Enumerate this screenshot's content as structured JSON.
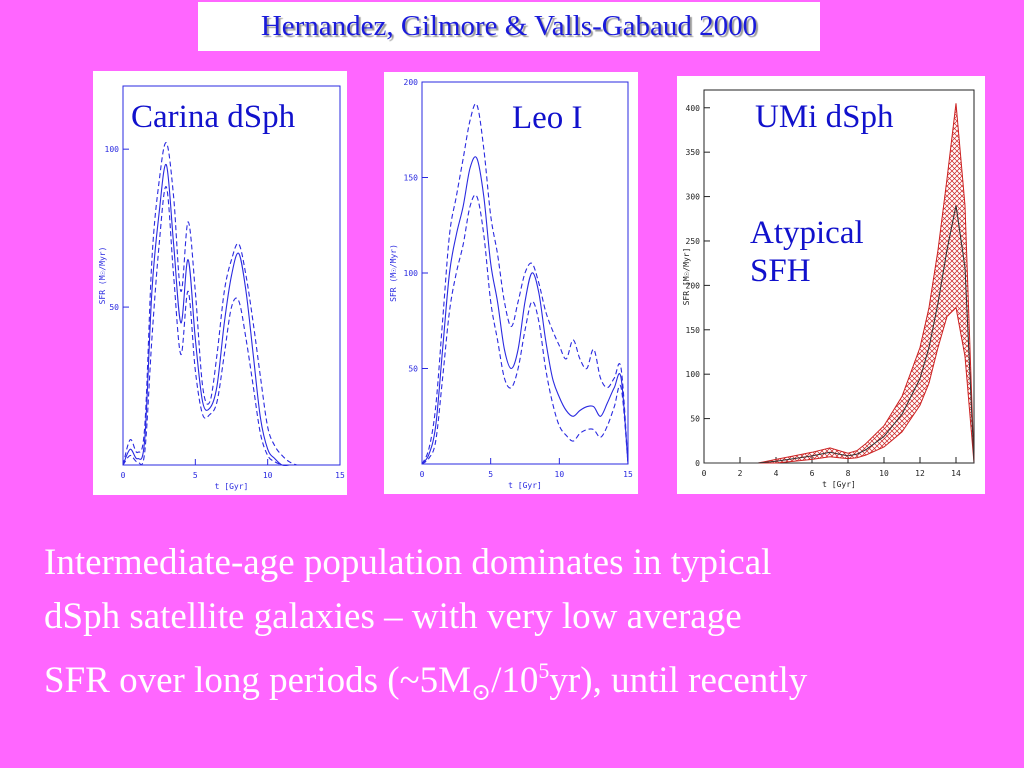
{
  "citation": "Hernandez, Gilmore & Valls-Gabaud 2000",
  "colors": {
    "background": "#ff66ff",
    "panel_line": "#2a2ae0",
    "umi_hatch": "#cc2222",
    "label_text": "#1111cc"
  },
  "chart_data": [
    {
      "type": "line",
      "title": "Carina dSph",
      "xlabel": "t [Gyr]",
      "ylabel": "SFR (M☉/Myr)",
      "xlim": [
        0,
        15
      ],
      "ylim": [
        0,
        120
      ],
      "xticks": [
        0,
        5,
        10,
        15
      ],
      "yticks": [
        50,
        100
      ],
      "series": [
        {
          "style": "solid",
          "x": [
            0,
            0.5,
            1,
            1.5,
            2,
            2.5,
            3,
            3.5,
            4,
            4.5,
            5,
            5.5,
            6,
            6.5,
            7,
            7.5,
            8,
            8.5,
            9,
            9.5,
            10,
            10.5,
            11,
            11.5
          ],
          "values": [
            0,
            5,
            2,
            8,
            55,
            80,
            95,
            70,
            45,
            65,
            40,
            20,
            18,
            25,
            45,
            60,
            67,
            55,
            35,
            15,
            5,
            2,
            0,
            0
          ]
        },
        {
          "style": "dashed",
          "x": [
            0,
            0.5,
            1,
            1.5,
            2,
            2.5,
            3,
            3.5,
            4,
            4.5,
            5,
            5.5,
            6,
            6.5,
            7,
            7.5,
            8,
            8.5,
            9,
            9.5,
            10,
            10.5,
            11,
            11.5,
            12
          ],
          "values": [
            0,
            8,
            4,
            12,
            65,
            90,
            102,
            85,
            55,
            77,
            55,
            25,
            20,
            35,
            55,
            65,
            70,
            60,
            45,
            28,
            12,
            6,
            3,
            1,
            0
          ]
        },
        {
          "style": "dashed",
          "x": [
            0,
            0.5,
            1,
            1.5,
            2,
            2.5,
            3,
            3.5,
            4,
            4.5,
            5,
            5.5,
            6,
            6.5,
            7,
            7.5,
            8,
            8.5,
            9,
            9.5,
            10,
            10.5,
            11
          ],
          "values": [
            0,
            3,
            1,
            4,
            40,
            70,
            88,
            60,
            35,
            55,
            30,
            16,
            16,
            20,
            35,
            50,
            52,
            40,
            25,
            10,
            3,
            1,
            0
          ]
        }
      ]
    },
    {
      "type": "line",
      "title": "Leo I",
      "xlabel": "t [Gyr]",
      "ylabel": "SFR (M☉/Myr)",
      "xlim": [
        0,
        15
      ],
      "ylim": [
        0,
        200
      ],
      "xticks": [
        0,
        5,
        10,
        15
      ],
      "yticks": [
        50,
        100,
        150,
        200
      ],
      "series": [
        {
          "style": "solid",
          "x": [
            0,
            0.5,
            1,
            1.5,
            2,
            2.5,
            3,
            3.5,
            4,
            4.5,
            5,
            5.5,
            6,
            6.5,
            7,
            7.5,
            8,
            8.5,
            9,
            9.5,
            10,
            10.5,
            11,
            11.5,
            12,
            12.5,
            13,
            13.5,
            14,
            14.5,
            15
          ],
          "values": [
            0,
            5,
            20,
            60,
            100,
            120,
            135,
            155,
            160,
            140,
            105,
            85,
            60,
            50,
            60,
            85,
            100,
            90,
            65,
            45,
            35,
            28,
            25,
            28,
            30,
            30,
            25,
            32,
            40,
            45,
            0
          ]
        },
        {
          "style": "dashed",
          "x": [
            0,
            0.5,
            1,
            1.5,
            2,
            2.5,
            3,
            3.5,
            4,
            4.5,
            5,
            5.5,
            6,
            6.5,
            7,
            7.5,
            8,
            8.5,
            9,
            9.5,
            10,
            10.5,
            11,
            11.5,
            12,
            12.5,
            13,
            13.5,
            14,
            14.5,
            15
          ],
          "values": [
            0,
            8,
            30,
            75,
            120,
            140,
            160,
            180,
            188,
            165,
            130,
            110,
            85,
            72,
            85,
            100,
            105,
            95,
            80,
            70,
            62,
            55,
            65,
            55,
            50,
            60,
            45,
            40,
            45,
            50,
            0
          ]
        },
        {
          "style": "dashed",
          "x": [
            0,
            0.5,
            1,
            1.5,
            2,
            2.5,
            3,
            3.5,
            4,
            4.5,
            5,
            5.5,
            6,
            6.5,
            7,
            7.5,
            8,
            8.5,
            9,
            9.5,
            10,
            10.5,
            11,
            11.5,
            12,
            12.5,
            13,
            13.5,
            14,
            14.5,
            15
          ],
          "values": [
            0,
            3,
            12,
            45,
            80,
            100,
            115,
            135,
            140,
            120,
            85,
            65,
            45,
            40,
            50,
            70,
            85,
            75,
            50,
            32,
            20,
            15,
            12,
            16,
            18,
            18,
            14,
            20,
            30,
            40,
            0
          ]
        }
      ]
    },
    {
      "type": "area",
      "title": "UMi dSph",
      "annotation": [
        "Atypical",
        "SFH"
      ],
      "xlabel": "t [Gyr]",
      "ylabel": "SFR [M☉/Myr]",
      "xlim": [
        0,
        15
      ],
      "ylim": [
        0,
        420
      ],
      "xticks": [
        0,
        2,
        4,
        6,
        8,
        10,
        12,
        14
      ],
      "yticks": [
        0,
        50,
        100,
        150,
        200,
        250,
        300,
        350,
        400
      ],
      "series": [
        {
          "style": "solid",
          "x": [
            0,
            3,
            4,
            5,
            6,
            7,
            7.5,
            8,
            8.5,
            9,
            10,
            11,
            12,
            12.5,
            13,
            13.5,
            14,
            14.5,
            15
          ],
          "values": [
            0,
            0,
            2,
            5,
            8,
            12,
            10,
            8,
            10,
            15,
            30,
            55,
            95,
            130,
            180,
            240,
            290,
            220,
            0
          ]
        },
        {
          "style": "upper",
          "x": [
            0,
            3,
            4,
            5,
            6,
            7,
            7.5,
            8,
            8.5,
            9,
            10,
            11,
            12,
            12.5,
            13,
            13.5,
            14,
            14.5,
            15
          ],
          "values": [
            0,
            0,
            4,
            8,
            12,
            17,
            14,
            11,
            14,
            22,
            42,
            75,
            130,
            175,
            240,
            320,
            405,
            290,
            0
          ]
        },
        {
          "style": "lower",
          "x": [
            0,
            3,
            4,
            5,
            6,
            7,
            7.5,
            8,
            8.5,
            9,
            10,
            11,
            12,
            12.5,
            13,
            13.5,
            14,
            14.5,
            15
          ],
          "values": [
            0,
            0,
            0,
            2,
            4,
            7,
            6,
            5,
            6,
            9,
            18,
            35,
            65,
            90,
            130,
            165,
            175,
            120,
            0
          ]
        }
      ]
    }
  ],
  "caption": {
    "line1": "Intermediate-age population dominates in typical",
    "line2": "dSph satellite galaxies – with very low average",
    "line3_a": "SFR over long periods (~5M",
    "line3_sun": "⊙",
    "line3_b": "/10",
    "line3_exp": "5",
    "line3_c": "yr), until recently"
  }
}
